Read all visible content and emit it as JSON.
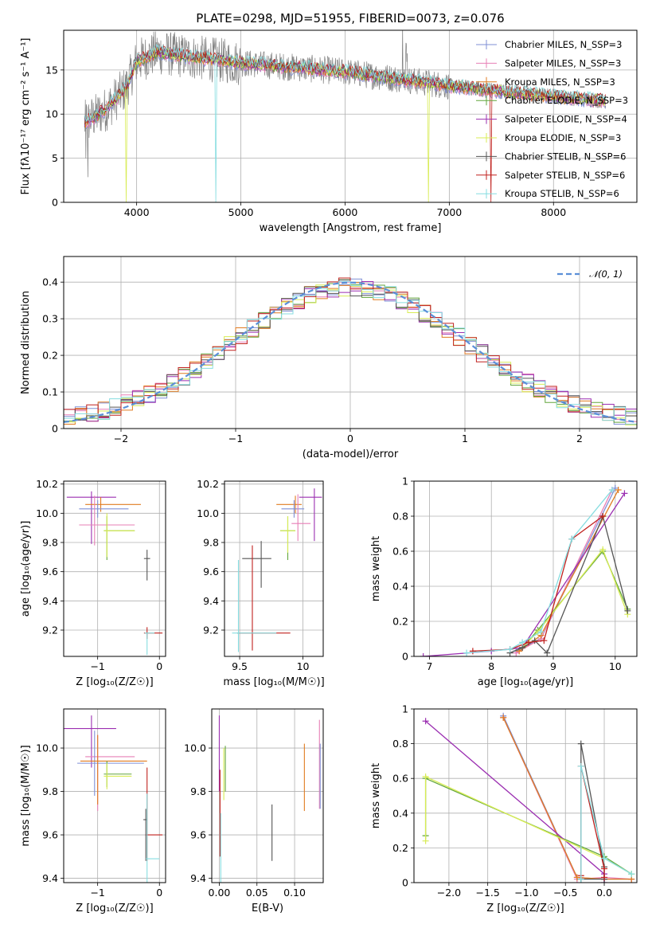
{
  "figure_title": "PLATE=0298, MJD=51955, FIBERID=0073, z=0.076",
  "colors": {
    "Chabrier MILES": "#7f8fd6",
    "Salpeter MILES": "#e77fb6",
    "Kroupa MILES": "#e07b20",
    "Chabrier ELODIE": "#62a53c",
    "Salpeter ELODIE": "#9b2fb1",
    "Kroupa ELODIE": "#d8ec55",
    "Chabrier STELIB": "#555555",
    "Salpeter STELIB": "#c0211e",
    "Kroupa STELIB": "#86dde0",
    "data": "#808080",
    "gaussian": "#5b8fd8"
  },
  "chart_data": [
    {
      "id": "spectrum",
      "type": "line",
      "xlabel": "wavelength [Angstrom, rest frame]",
      "ylabel": "Flux [fλ10⁻¹⁷ erg cm⁻² s⁻¹ A⁻¹]",
      "xlim": [
        3300,
        8800
      ],
      "ylim": [
        0,
        19.5
      ],
      "xticks": [
        4000,
        5000,
        6000,
        7000,
        8000
      ],
      "yticks": [
        0,
        5,
        10,
        15
      ],
      "legend_position": "upper right",
      "legend": [
        "Chabrier MILES, N_SSP=3",
        "Salpeter MILES, N_SSP=3",
        "Kroupa MILES, N_SSP=3",
        "Chabrier ELODIE, N_SSP=3",
        "Salpeter ELODIE, N_SSP=4",
        "Kroupa ELODIE, N_SSP=3",
        "Chabrier STELIB, N_SSP=6",
        "Salpeter STELIB, N_SSP=6",
        "Kroupa STELIB, N_SSP=6"
      ],
      "continuum": {
        "x": [
          3500,
          3700,
          3900,
          4000,
          4200,
          4500,
          5000,
          5500,
          6000,
          6500,
          7000,
          7500,
          8000,
          8500
        ],
        "y": [
          9.0,
          10.5,
          13.0,
          16.0,
          17.0,
          16.5,
          15.8,
          15.3,
          14.8,
          14.0,
          13.2,
          12.6,
          12.0,
          11.5
        ]
      }
    },
    {
      "id": "residuals",
      "type": "histogram",
      "xlabel": "(data-model)/error",
      "ylabel": "Normed distribution",
      "xlim": [
        -2.5,
        2.5
      ],
      "ylim": [
        0,
        0.47
      ],
      "xticks": [
        -2,
        -1,
        0,
        1,
        2
      ],
      "yticks": [
        0,
        0.1,
        0.2,
        0.3,
        0.4
      ],
      "legend": "𝒩(0, 1)",
      "legend_position": "upper right",
      "bin_width": 0.1,
      "bin_start": -2.5
    },
    {
      "id": "age-vs-Z",
      "type": "errorbar",
      "xlabel": "Z [log₁₀(Z/Z☉)]",
      "ylabel": "age  [log₁₀(age/yr)]",
      "xlim": [
        -1.55,
        0.1
      ],
      "ylim": [
        9.02,
        10.22
      ],
      "xticks": [
        -1,
        0
      ],
      "yticks": [
        9.2,
        9.4,
        9.6,
        9.8,
        10.0,
        10.2
      ],
      "points": [
        {
          "model": "Salpeter ELODIE",
          "x": -1.1,
          "xerr": [
            0.4,
            0.4
          ],
          "y": 10.11,
          "yerr": [
            0.32,
            0.04
          ]
        },
        {
          "model": "Kroupa MILES",
          "x": -0.95,
          "xerr": [
            0.25,
            0.65
          ],
          "y": 10.06,
          "yerr": [
            0.05,
            0.05
          ]
        },
        {
          "model": "Chabrier MILES",
          "x": -1.0,
          "xerr": [
            0.3,
            0.5
          ],
          "y": 10.03,
          "yerr": [
            0.06,
            0.06
          ]
        },
        {
          "model": "Salpeter MILES",
          "x": -1.05,
          "xerr": [
            0.25,
            0.65
          ],
          "y": 9.92,
          "yerr": [
            0.14,
            0.2
          ]
        },
        {
          "model": "Chabrier ELODIE",
          "x": -0.85,
          "xerr": [
            0.05,
            0.45
          ],
          "y": 9.88,
          "yerr": [
            0.2,
            0.1
          ]
        },
        {
          "model": "Kroupa ELODIE",
          "x": -0.85,
          "xerr": [
            0.05,
            0.45
          ],
          "y": 9.88,
          "yerr": [
            0.18,
            0.12
          ]
        },
        {
          "model": "Chabrier STELIB",
          "x": -0.2,
          "xerr": [
            0.05,
            0.05
          ],
          "y": 9.69,
          "yerr": [
            0.15,
            0.06
          ]
        },
        {
          "model": "Salpeter STELIB",
          "x": -0.2,
          "xerr": [
            0.05,
            0.25
          ],
          "y": 9.18,
          "yerr": [
            0.04,
            0.04
          ]
        },
        {
          "model": "Kroupa STELIB",
          "x": -0.2,
          "xerr": [
            0.04,
            0.12
          ],
          "y": 9.18,
          "yerr": [
            0.15,
            0.0
          ]
        }
      ]
    },
    {
      "id": "age-vs-mass",
      "type": "errorbar",
      "xlabel": "mass [log₁₀(M/M☉)]",
      "ylabel": "",
      "xlim": [
        9.38,
        10.16
      ],
      "ylim": [
        9.02,
        10.22
      ],
      "xticks": [
        9.5,
        10.0
      ],
      "yticks": [
        9.2,
        9.4,
        9.6,
        9.8,
        10.0,
        10.2
      ],
      "points": [
        {
          "model": "Salpeter ELODIE",
          "x": 10.09,
          "xerr": [
            0.12,
            0.06
          ],
          "y": 10.11,
          "yerr": [
            0.3,
            0.06
          ]
        },
        {
          "model": "Kroupa MILES",
          "x": 9.94,
          "xerr": [
            0.15,
            0.05
          ],
          "y": 10.06,
          "yerr": [
            0.06,
            0.06
          ]
        },
        {
          "model": "Chabrier MILES",
          "x": 9.93,
          "xerr": [
            0.1,
            0.08
          ],
          "y": 10.03,
          "yerr": [
            0.06,
            0.06
          ]
        },
        {
          "model": "Salpeter MILES",
          "x": 9.96,
          "xerr": [
            0.05,
            0.1
          ],
          "y": 9.93,
          "yerr": [
            0.12,
            0.2
          ]
        },
        {
          "model": "Chabrier ELODIE",
          "x": 9.88,
          "xerr": [
            0.06,
            0.06
          ],
          "y": 9.88,
          "yerr": [
            0.2,
            0.1
          ]
        },
        {
          "model": "Kroupa ELODIE",
          "x": 9.88,
          "xerr": [
            0.06,
            0.06
          ],
          "y": 9.88,
          "yerr": [
            0.15,
            0.1
          ]
        },
        {
          "model": "Chabrier STELIB",
          "x": 9.67,
          "xerr": [
            0.15,
            0.08
          ],
          "y": 9.69,
          "yerr": [
            0.2,
            0.12
          ]
        },
        {
          "model": "Salpeter STELIB",
          "x": 9.6,
          "xerr": [
            0.12,
            0.3
          ],
          "y": 9.18,
          "yerr": [
            0.12,
            0.6
          ]
        },
        {
          "model": "Kroupa STELIB",
          "x": 9.49,
          "xerr": [
            0.05,
            0.3
          ],
          "y": 9.18,
          "yerr": [
            0.13,
            0.5
          ]
        }
      ]
    },
    {
      "id": "massweight-vs-age",
      "type": "line",
      "xlabel": "age  [log₁₀(age/yr)]",
      "ylabel": "mass weight",
      "xlim": [
        6.75,
        10.35
      ],
      "ylim": [
        0,
        1.0
      ],
      "xticks": [
        7,
        8,
        9,
        10
      ],
      "yticks": [
        0,
        0.2,
        0.4,
        0.6,
        0.8,
        1.0
      ],
      "series": [
        {
          "model": "Chabrier MILES",
          "x": [
            8.4,
            8.8,
            10.0
          ],
          "y": [
            0.03,
            0.1,
            0.96
          ]
        },
        {
          "model": "Salpeter MILES",
          "x": [
            8.4,
            8.8,
            9.95
          ],
          "y": [
            0.02,
            0.1,
            0.95
          ]
        },
        {
          "model": "Kroupa MILES",
          "x": [
            8.45,
            8.8,
            10.05
          ],
          "y": [
            0.03,
            0.12,
            0.95
          ]
        },
        {
          "model": "Chabrier ELODIE",
          "x": [
            8.5,
            8.75,
            9.8,
            10.2
          ],
          "y": [
            0.05,
            0.15,
            0.6,
            0.27
          ]
        },
        {
          "model": "Salpeter ELODIE",
          "x": [
            6.9,
            8.0,
            8.5,
            10.15
          ],
          "y": [
            0.0,
            0.03,
            0.05,
            0.93
          ]
        },
        {
          "model": "Kroupa ELODIE",
          "x": [
            8.5,
            8.75,
            9.8,
            10.2
          ],
          "y": [
            0.05,
            0.14,
            0.61,
            0.24
          ]
        },
        {
          "model": "Chabrier STELIB",
          "x": [
            8.3,
            8.5,
            8.7,
            8.9,
            9.8,
            10.2
          ],
          "y": [
            0.02,
            0.05,
            0.09,
            0.02,
            0.8,
            0.26
          ]
        },
        {
          "model": "Salpeter STELIB",
          "x": [
            7.7,
            8.3,
            8.6,
            8.85,
            9.3,
            9.8
          ],
          "y": [
            0.03,
            0.04,
            0.08,
            0.09,
            0.67,
            0.8
          ]
        },
        {
          "model": "Kroupa STELIB",
          "x": [
            7.6,
            8.3,
            8.5,
            8.8,
            9.3,
            9.95
          ],
          "y": [
            0.02,
            0.04,
            0.08,
            0.14,
            0.67,
            0.95
          ]
        }
      ]
    },
    {
      "id": "mass-vs-Z",
      "type": "errorbar",
      "xlabel": "Z [log₁₀(Z/Z☉)]",
      "ylabel": "mass [log₁₀(M/M☉)]",
      "xlim": [
        -1.55,
        0.1
      ],
      "ylim": [
        9.38,
        10.18
      ],
      "xticks": [
        -1,
        0
      ],
      "yticks": [
        9.4,
        9.6,
        9.8,
        10.0
      ],
      "points": [
        {
          "model": "Salpeter ELODIE",
          "x": -1.1,
          "xerr": [
            0.45,
            0.4
          ],
          "y": 10.09,
          "yerr": [
            0.18,
            0.06
          ]
        },
        {
          "model": "Salpeter MILES",
          "x": -1.0,
          "xerr": [
            0.2,
            0.6
          ],
          "y": 9.96,
          "yerr": [
            0.25,
            0.1
          ]
        },
        {
          "model": "Chabrier MILES",
          "x": -1.05,
          "xerr": [
            0.28,
            0.8
          ],
          "y": 9.93,
          "yerr": [
            0.15,
            0.15
          ]
        },
        {
          "model": "Kroupa MILES",
          "x": -1.0,
          "xerr": [
            0.28,
            0.8
          ],
          "y": 9.94,
          "yerr": [
            0.2,
            0.12
          ]
        },
        {
          "model": "Chabrier ELODIE",
          "x": -0.85,
          "xerr": [
            0.05,
            0.4
          ],
          "y": 9.88,
          "yerr": [
            0.06,
            0.06
          ]
        },
        {
          "model": "Kroupa ELODIE",
          "x": -0.85,
          "xerr": [
            0.05,
            0.4
          ],
          "y": 9.87,
          "yerr": [
            0.06,
            0.06
          ]
        },
        {
          "model": "Salpeter STELIB",
          "x": -0.2,
          "xerr": [
            0.02,
            0.25
          ],
          "y": 9.6,
          "yerr": [
            0.12,
            0.31
          ]
        },
        {
          "model": "Chabrier STELIB",
          "x": -0.22,
          "xerr": [
            0.04,
            0.02
          ],
          "y": 9.67,
          "yerr": [
            0.19,
            0.05
          ]
        },
        {
          "model": "Kroupa STELIB",
          "x": -0.2,
          "xerr": [
            0.02,
            0.2
          ],
          "y": 9.49,
          "yerr": [
            0.13,
            0.3
          ]
        }
      ]
    },
    {
      "id": "mass-vs-EBV",
      "type": "errorbar",
      "xlabel": "E(B-V)",
      "ylabel": "",
      "xlim": [
        -0.01,
        0.138
      ],
      "ylim": [
        9.38,
        10.18
      ],
      "xticks": [
        0.0,
        0.05,
        0.1
      ],
      "yticks": [
        9.4,
        9.6,
        9.8,
        10.0
      ],
      "points": [
        {
          "model": "Salpeter ELODIE",
          "x": 0.0,
          "xerr": [
            0,
            0
          ],
          "y": 9.95,
          "yerr": [
            0.15,
            0.2
          ]
        },
        {
          "model": "Salpeter MILES",
          "x": 0.133,
          "xerr": [
            0,
            0
          ],
          "y": 9.96,
          "yerr": [
            0.24,
            0.17
          ]
        },
        {
          "model": "Chabrier MILES",
          "x": 0.134,
          "xerr": [
            0,
            0
          ],
          "y": 9.9,
          "yerr": [
            0.18,
            0.12
          ]
        },
        {
          "model": "Kroupa MILES",
          "x": 0.113,
          "xerr": [
            0,
            0
          ],
          "y": 9.9,
          "yerr": [
            0.19,
            0.12
          ]
        },
        {
          "model": "Chabrier ELODIE",
          "x": 0.008,
          "xerr": [
            0,
            0
          ],
          "y": 9.9,
          "yerr": [
            0.1,
            0.11
          ]
        },
        {
          "model": "Kroupa ELODIE",
          "x": 0.006,
          "xerr": [
            0,
            0
          ],
          "y": 9.9,
          "yerr": [
            0.14,
            0.1
          ]
        },
        {
          "model": "Chabrier STELIB",
          "x": 0.07,
          "xerr": [
            0,
            0
          ],
          "y": 9.61,
          "yerr": [
            0.13,
            0.13
          ]
        },
        {
          "model": "Salpeter STELIB",
          "x": 0.001,
          "xerr": [
            0,
            0
          ],
          "y": 9.75,
          "yerr": [
            0.25,
            0.15
          ]
        },
        {
          "model": "Kroupa STELIB",
          "x": 0.002,
          "xerr": [
            0,
            0
          ],
          "y": 9.55,
          "yerr": [
            0.18,
            0.15
          ]
        }
      ]
    },
    {
      "id": "massweight-vs-Z",
      "type": "line",
      "xlabel": "Z [log₁₀(Z/Z☉)]",
      "ylabel": "mass weight",
      "xlim": [
        -2.45,
        0.42
      ],
      "ylim": [
        0,
        1.0
      ],
      "xticks": [
        -2.0,
        -1.5,
        -1.0,
        -0.5,
        0.0
      ],
      "yticks": [
        0,
        0.2,
        0.4,
        0.6,
        0.8,
        1.0
      ],
      "series": [
        {
          "model": "Chabrier MILES",
          "x": [
            -1.3,
            -0.35,
            0.0,
            0.35
          ],
          "y": [
            0.96,
            0.03,
            0.02,
            0.02
          ]
        },
        {
          "model": "Salpeter MILES",
          "x": [
            -1.3,
            -0.35,
            0.0,
            0.35
          ],
          "y": [
            0.95,
            0.02,
            0.03,
            0.02
          ]
        },
        {
          "model": "Kroupa MILES",
          "x": [
            -1.3,
            -0.35,
            0.0,
            0.35
          ],
          "y": [
            0.95,
            0.03,
            0.02,
            0.02
          ]
        },
        {
          "model": "Chabrier ELODIE",
          "x": [
            -2.3,
            -2.3,
            0.0,
            0.35
          ],
          "y": [
            0.27,
            0.6,
            0.15,
            0.05
          ]
        },
        {
          "model": "Salpeter ELODIE",
          "x": [
            -2.3,
            0.0,
            0.0
          ],
          "y": [
            0.93,
            0.05,
            0.0
          ]
        },
        {
          "model": "Kroupa ELODIE",
          "x": [
            -2.3,
            -2.3,
            0.0,
            0.35
          ],
          "y": [
            0.24,
            0.61,
            0.14,
            0.05
          ]
        },
        {
          "model": "Chabrier STELIB",
          "x": [
            -0.3,
            -0.3,
            0.0,
            0.0,
            -0.3
          ],
          "y": [
            0.02,
            0.8,
            0.09,
            0.02,
            0.02
          ]
        },
        {
          "model": "Salpeter STELIB",
          "x": [
            -0.3,
            -0.3,
            0.0,
            0.0
          ],
          "y": [
            0.04,
            0.67,
            0.08,
            0.03
          ]
        },
        {
          "model": "Kroupa STELIB",
          "x": [
            -0.3,
            -0.3,
            0.0,
            0.35
          ],
          "y": [
            0.02,
            0.67,
            0.14,
            0.05
          ]
        }
      ]
    }
  ]
}
